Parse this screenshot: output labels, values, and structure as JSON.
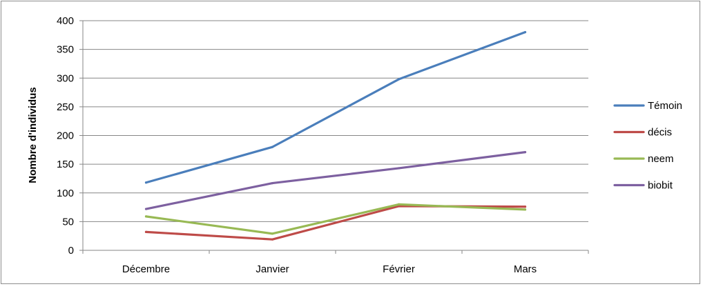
{
  "chart_data": {
    "type": "line",
    "title": "",
    "xlabel": "",
    "ylabel": "Nombre d'individus",
    "categories": [
      "Décembre",
      "Janvier",
      "Février",
      "Mars"
    ],
    "ylim": [
      0,
      400
    ],
    "yticks": [
      0,
      50,
      100,
      150,
      200,
      250,
      300,
      350,
      400
    ],
    "grid": true,
    "legend_position": "right",
    "series": [
      {
        "name": "Témoin",
        "color": "#4a7ebb",
        "values": [
          118,
          180,
          298,
          380
        ]
      },
      {
        "name": "décis",
        "color": "#be4b48",
        "values": [
          32,
          19,
          77,
          76
        ]
      },
      {
        "name": "neem",
        "color": "#98b954",
        "values": [
          59,
          29,
          80,
          71
        ]
      },
      {
        "name": "biobit",
        "color": "#7d60a0",
        "values": [
          72,
          117,
          143,
          171
        ]
      }
    ]
  }
}
